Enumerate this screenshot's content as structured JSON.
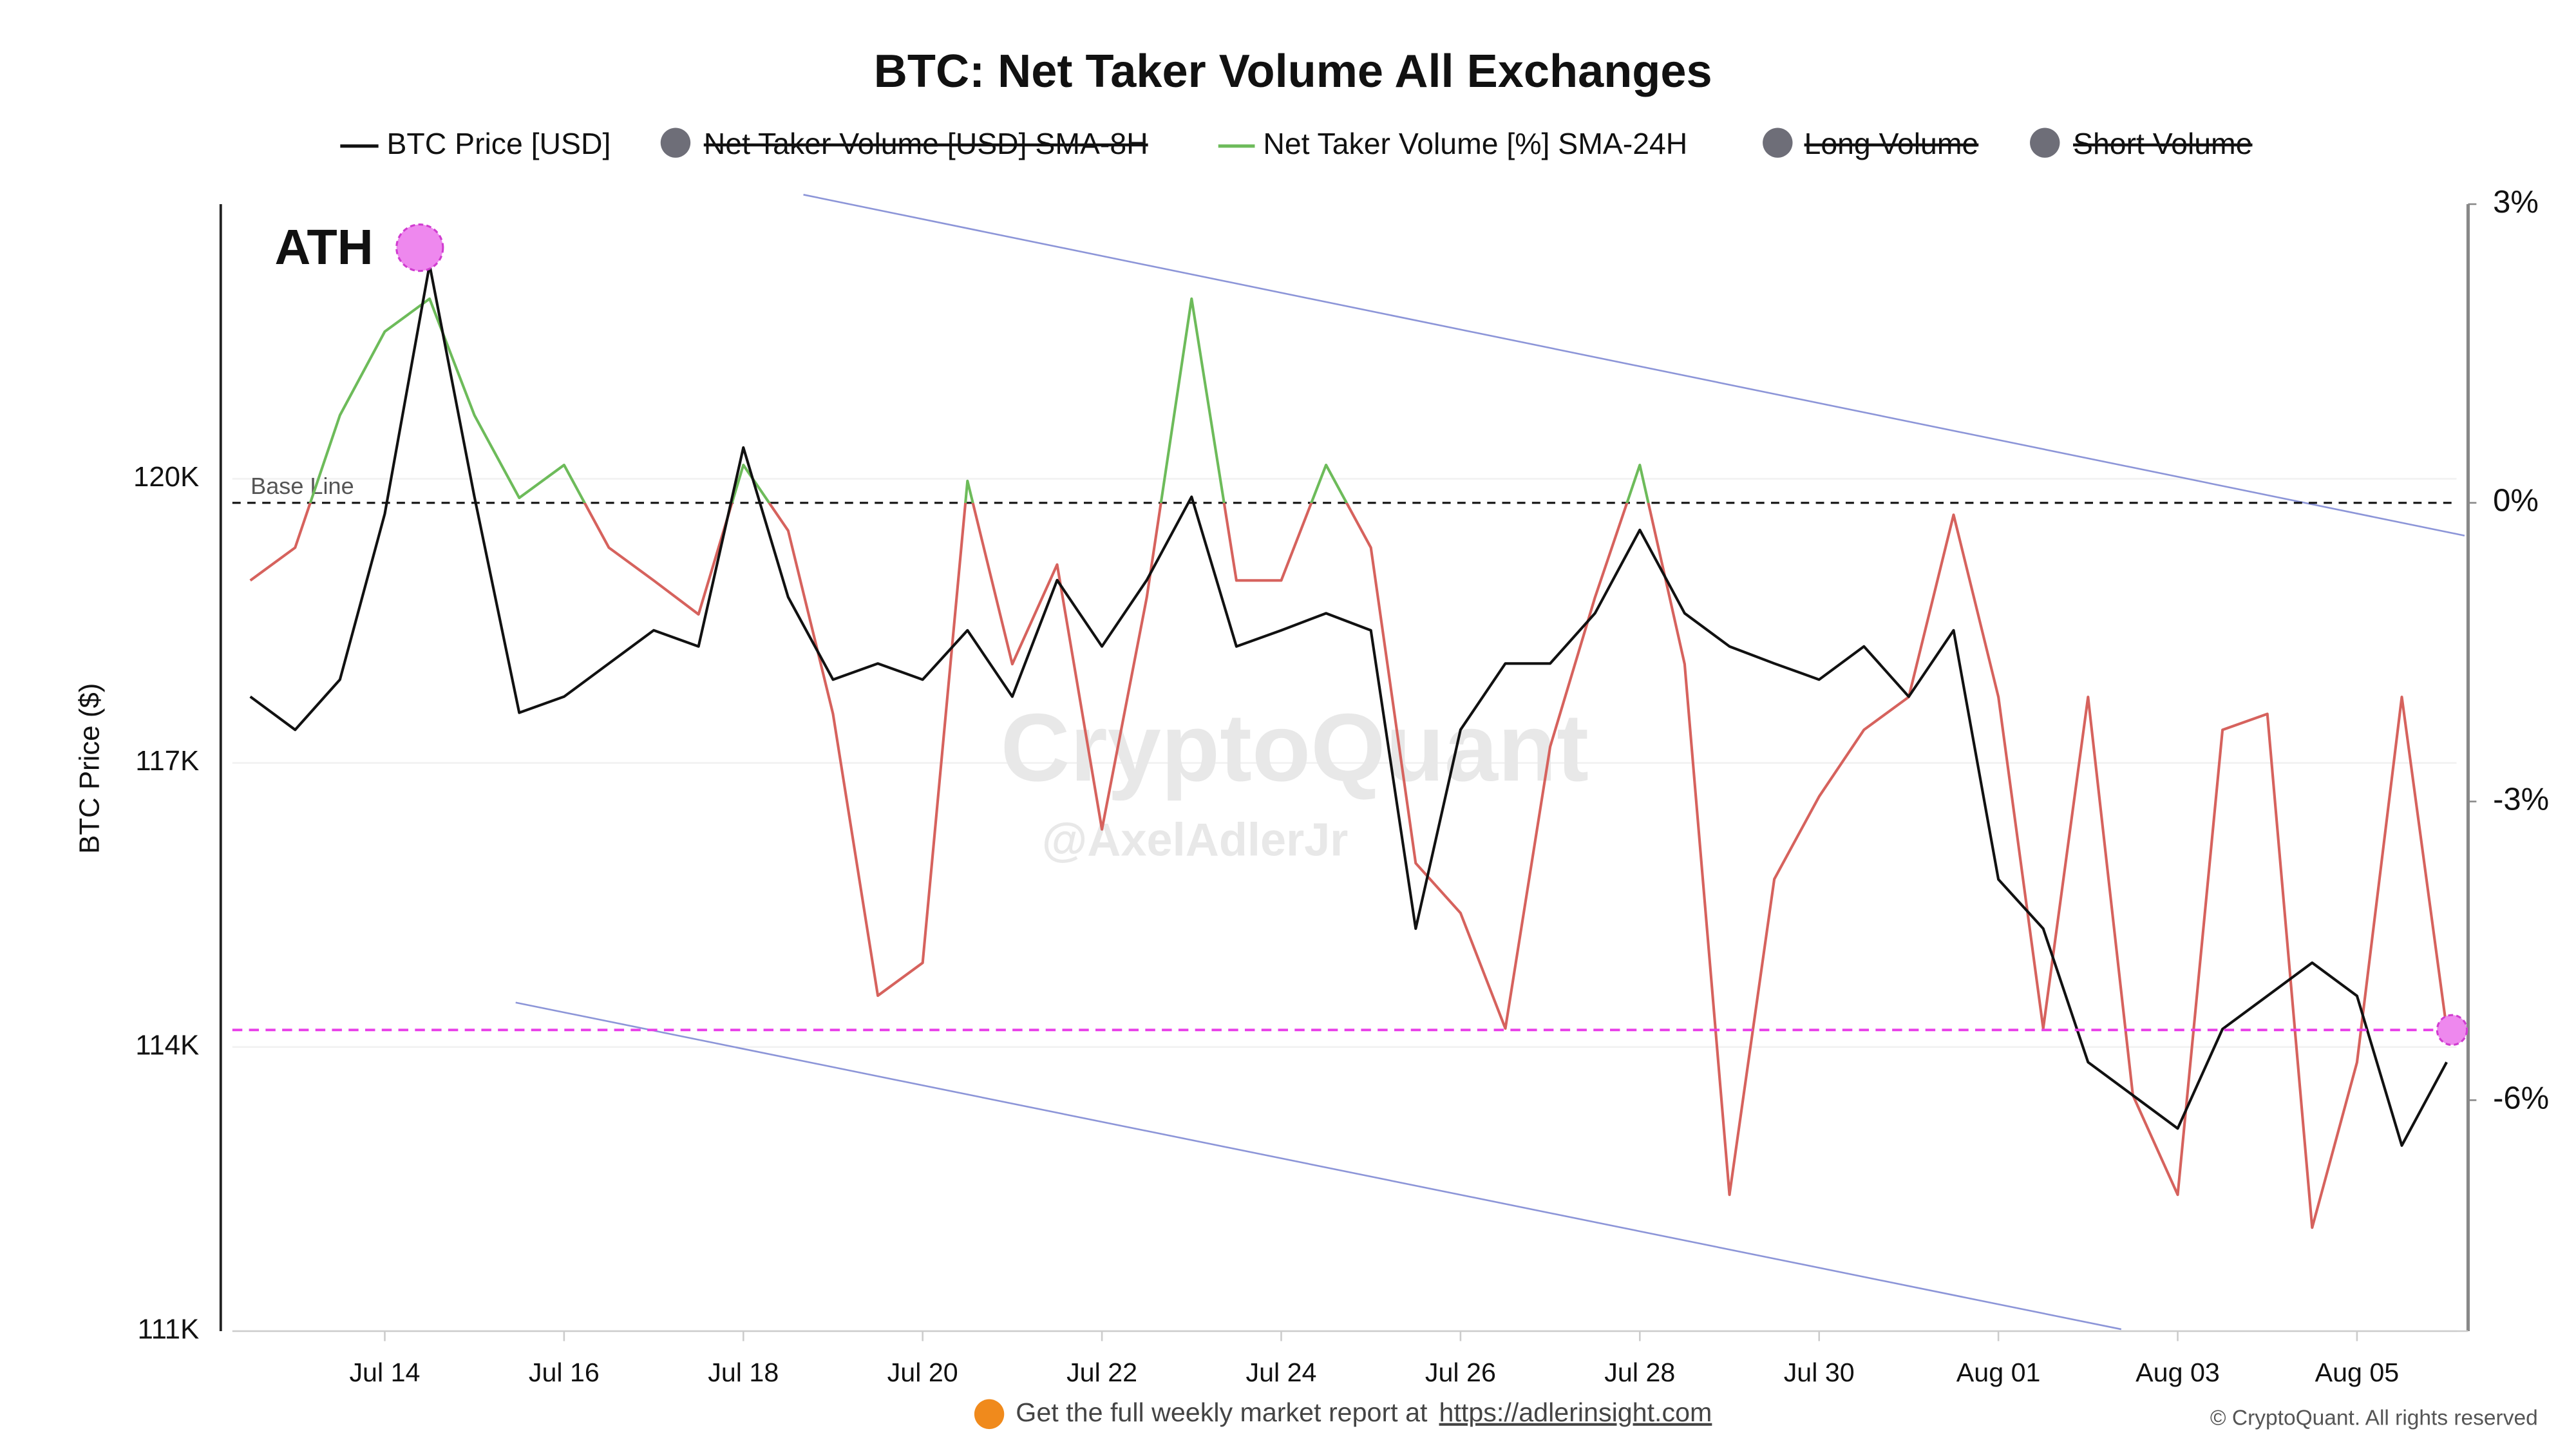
{
  "chart_data": {
    "type": "line",
    "title": "BTC: Net Taker Volume All Exchanges",
    "y_label": "BTC Price ($)",
    "x": [
      12.5,
      13,
      13.5,
      14,
      14.5,
      15,
      15.5,
      16,
      16.5,
      17,
      17.5,
      18,
      18.5,
      19,
      19.5,
      20,
      20.5,
      21,
      21.5,
      22,
      22.5,
      23,
      23.5,
      24,
      24.5,
      25,
      25.5,
      26,
      26.5,
      27,
      27.5,
      28,
      28.5,
      29,
      29.5,
      30,
      30.5,
      31,
      31.5,
      32,
      32.5,
      33,
      33.5,
      34,
      34.5,
      35,
      35.5,
      36,
      36.5,
      37
    ],
    "series": [
      {
        "name": "BTC Price [USD]",
        "color": "#111111",
        "axis": "y",
        "values": [
          117700,
          117350,
          117880,
          119630,
          122260,
          119810,
          117530,
          117700,
          118050,
          118400,
          118230,
          120330,
          118750,
          117880,
          118050,
          117880,
          118400,
          117700,
          118930,
          118230,
          118930,
          119810,
          118230,
          118400,
          118580,
          118400,
          115250,
          117350,
          118050,
          118050,
          118580,
          119460,
          118580,
          118230,
          118050,
          117880,
          118230,
          117700,
          118400,
          115770,
          115250,
          113840,
          113490,
          113140,
          114190,
          114540,
          114890,
          114540,
          112960,
          113840
        ]
      },
      {
        "name": "Net Taker Volume [%] SMA-24H",
        "color": "#6dbb5a",
        "negative_color": "#d6625d",
        "axis": "y2",
        "values": [
          -0.78,
          -0.45,
          0.88,
          1.72,
          2.05,
          0.88,
          0.05,
          0.38,
          -0.45,
          -0.78,
          -1.12,
          0.38,
          -0.28,
          -2.12,
          -4.95,
          -4.62,
          0.22,
          -1.62,
          -0.62,
          -3.28,
          -0.95,
          2.05,
          -0.78,
          -0.78,
          0.38,
          -0.45,
          -3.62,
          -4.12,
          -5.28,
          -2.45,
          -0.95,
          0.38,
          -1.62,
          -6.95,
          -3.78,
          -2.95,
          -2.28,
          -1.95,
          -0.12,
          -1.95,
          -5.28,
          -1.95,
          -5.95,
          -6.95,
          -2.28,
          -2.12,
          -7.28,
          -5.62,
          -1.95,
          -5.28
        ]
      }
    ],
    "legend_hidden": [
      "Net Taker Volume [USD] SMA-8H",
      "Long Volume",
      "Short Volume"
    ],
    "legend_hidden_color": "#6e6e78",
    "xlim": [
      12.3,
      37.11
    ],
    "xticks": [
      {
        "value": 14,
        "label": "Jul 14"
      },
      {
        "value": 16,
        "label": "Jul 16"
      },
      {
        "value": 18,
        "label": "Jul 18"
      },
      {
        "value": 20,
        "label": "Jul 20"
      },
      {
        "value": 22,
        "label": "Jul 22"
      },
      {
        "value": 24,
        "label": "Jul 24"
      },
      {
        "value": 26,
        "label": "Jul 26"
      },
      {
        "value": 28,
        "label": "Jul 28"
      },
      {
        "value": 30,
        "label": "Jul 30"
      },
      {
        "value": 32,
        "label": "Aug 01"
      },
      {
        "value": 34,
        "label": "Aug 03"
      },
      {
        "value": 36,
        "label": "Aug 05"
      }
    ],
    "ylim": [
      111000,
      122900
    ],
    "yticks": [
      {
        "value": 111000,
        "label": "111K"
      },
      {
        "value": 114000,
        "label": "114K"
      },
      {
        "value": 117000,
        "label": "117K"
      },
      {
        "value": 120000,
        "label": "120K"
      }
    ],
    "y2lim": [
      -8.32,
      3
    ],
    "y2ticks": [
      {
        "value": -6,
        "label": "-6%"
      },
      {
        "value": -3,
        "label": "-3%"
      },
      {
        "value": 0,
        "label": "0%"
      },
      {
        "value": 3,
        "label": "3%"
      }
    ],
    "grid": true,
    "base_line": {
      "label": "Base Line",
      "value": 0,
      "axis": "y2",
      "color": "#111111"
    },
    "price_line": {
      "value": 114180,
      "color": "#e83de8"
    },
    "channel": {
      "color": "#8c95d8",
      "upper": {
        "x": [
          18.67,
          37.2
        ],
        "y": [
          123000,
          119400
        ]
      },
      "lower": {
        "x": [
          15.46,
          33.37
        ],
        "y": [
          114470,
          111020
        ]
      }
    },
    "markers": [
      {
        "label": "ATH",
        "x": 14.39,
        "y": 122440
      },
      {
        "x": 37.06,
        "y": 114180
      }
    ],
    "marker_color": "#ee88ee",
    "watermark": "CryptoQuant",
    "watermark_handle": "@AxelAdlerJr",
    "footer": {
      "text": "Get the full weekly market report at",
      "link": "https://adlerinsight.com",
      "copyright": "© CryptoQuant. All rights reserved"
    }
  }
}
